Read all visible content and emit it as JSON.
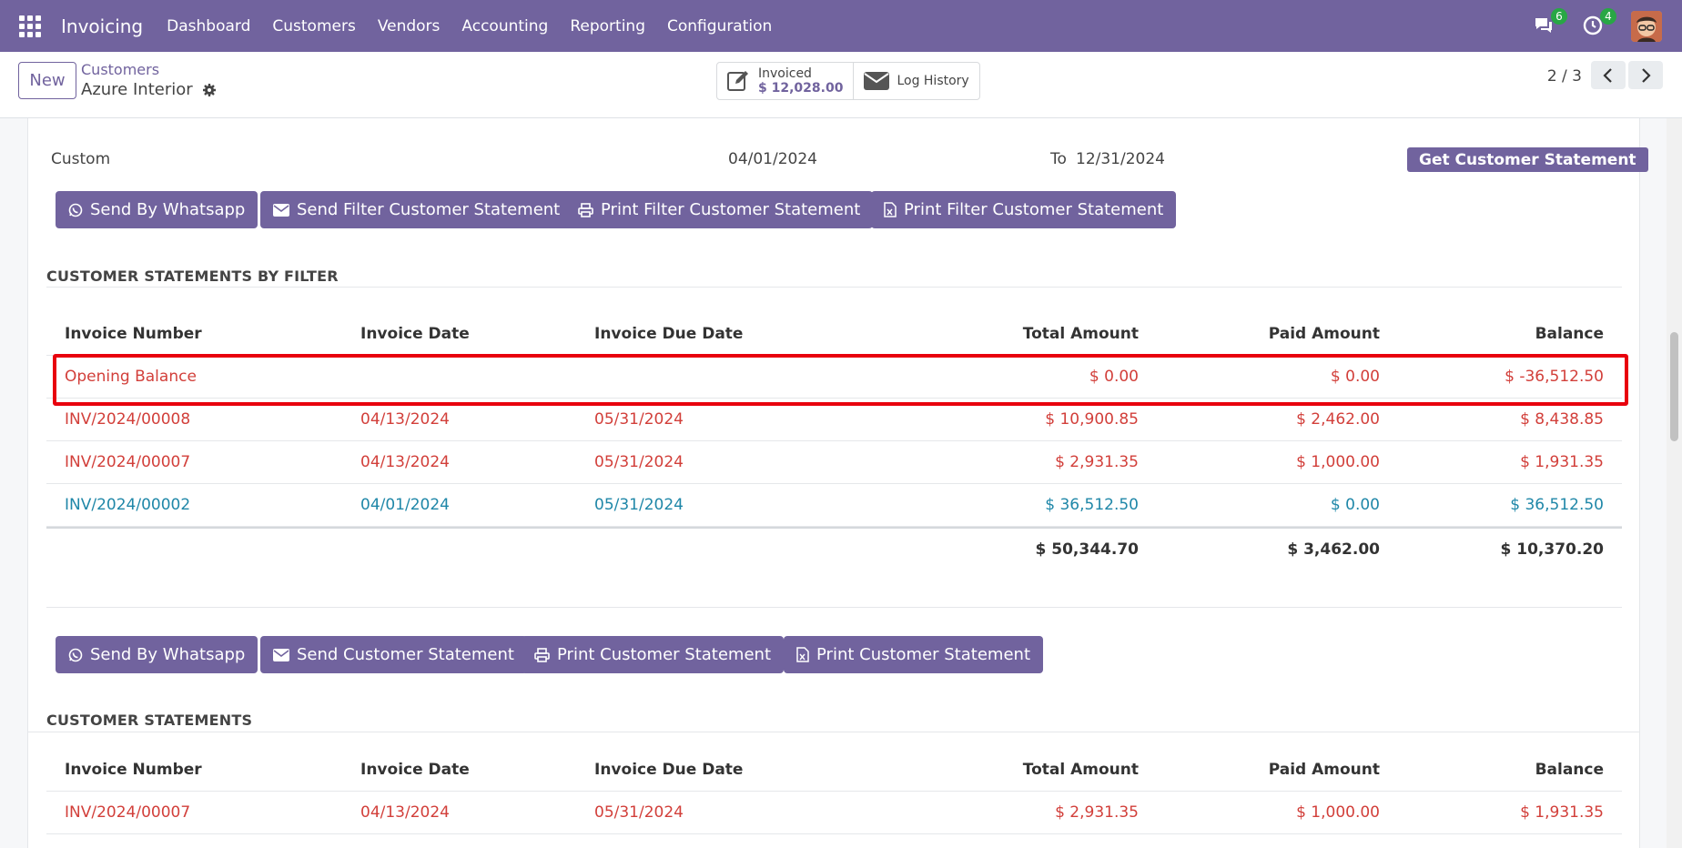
{
  "nav": {
    "app_name": "Invoicing",
    "menu": [
      "Dashboard",
      "Customers",
      "Vendors",
      "Accounting",
      "Reporting",
      "Configuration"
    ],
    "messages_count": "6",
    "activities_count": "4"
  },
  "control": {
    "new_label": "New",
    "breadcrumb_parent": "Customers",
    "breadcrumb_current": "Azure Interior",
    "invoiced_label": "Invoiced",
    "invoiced_value": "$ 12,028.00",
    "log_history_label": "Log History",
    "pager": "2 / 3"
  },
  "filter": {
    "period": "Custom",
    "date_from": "04/01/2024",
    "to_label": "To",
    "date_to": "12/31/2024",
    "get_statement_label": "Get Customer Statement"
  },
  "filter_buttons": {
    "whatsapp": "Send By Whatsapp",
    "send": "Send Filter Customer Statement",
    "print_pdf": "Print Filter Customer Statement",
    "print_xls": "Print Filter Customer Statement"
  },
  "filtered_section": {
    "title": "CUSTOMER STATEMENTS BY FILTER",
    "headers": [
      "Invoice Number",
      "Invoice Date",
      "Invoice Due Date",
      "Total Amount",
      "Paid Amount",
      "Balance"
    ],
    "rows": [
      {
        "number": "Opening Balance",
        "date": "",
        "due": "",
        "total": "$ 0.00",
        "paid": "$ 0.00",
        "balance": "$ -36,512.50"
      },
      {
        "number": "INV/2024/00008",
        "date": "04/13/2024",
        "due": "05/31/2024",
        "total": "$ 10,900.85",
        "paid": "$ 2,462.00",
        "balance": "$ 8,438.85"
      },
      {
        "number": "INV/2024/00007",
        "date": "04/13/2024",
        "due": "05/31/2024",
        "total": "$ 2,931.35",
        "paid": "$ 1,000.00",
        "balance": "$ 1,931.35"
      },
      {
        "number": "INV/2024/00002",
        "date": "04/01/2024",
        "due": "05/31/2024",
        "total": "$ 36,512.50",
        "paid": "$ 0.00",
        "balance": "$ 36,512.50"
      }
    ],
    "totals": {
      "total": "$ 50,344.70",
      "paid": "$ 3,462.00",
      "balance": "$ 10,370.20"
    }
  },
  "statement_buttons": {
    "whatsapp": "Send By Whatsapp",
    "send": "Send Customer Statement",
    "print_pdf": "Print Customer Statement",
    "print_xls": "Print Customer Statement"
  },
  "statement_section": {
    "title": "CUSTOMER STATEMENTS",
    "headers": [
      "Invoice Number",
      "Invoice Date",
      "Invoice Due Date",
      "Total Amount",
      "Paid Amount",
      "Balance"
    ],
    "rows": [
      {
        "number": "INV/2024/00007",
        "date": "04/13/2024",
        "due": "05/31/2024",
        "total": "$ 2,931.35",
        "paid": "$ 1,000.00",
        "balance": "$ 1,931.35"
      }
    ]
  },
  "colors": {
    "brand": "#71639e",
    "overdue_red": "#d23f3a",
    "normal_blue": "#1f87a8",
    "highlight": "#e8000d"
  }
}
